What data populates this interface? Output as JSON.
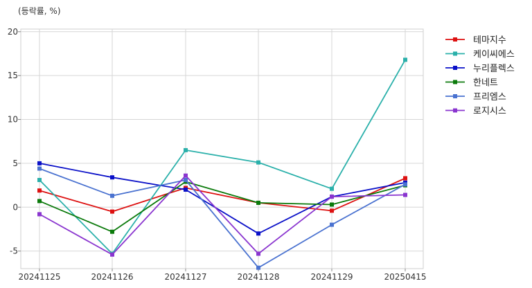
{
  "chart_data": {
    "type": "line",
    "unit_label": "(등락률, %)",
    "categories": [
      "20241125",
      "20241126",
      "20241127",
      "20241128",
      "20241129",
      "20250415"
    ],
    "ylim": [
      -7,
      20.3
    ],
    "yticks": [
      -5,
      0,
      5,
      10,
      15,
      20
    ],
    "grid": true,
    "legend_position": "right-outside",
    "series": [
      {
        "name": "테마지수",
        "color": "#dd1111",
        "values": [
          1.9,
          -0.5,
          2.2,
          0.5,
          -0.4,
          3.3
        ]
      },
      {
        "name": "케이씨에스",
        "color": "#2ab0aa",
        "values": [
          3.1,
          -5.3,
          6.5,
          5.1,
          2.1,
          16.8
        ]
      },
      {
        "name": "누리플렉스",
        "color": "#0a10c8",
        "values": [
          5.0,
          3.4,
          2.0,
          -3.0,
          1.2,
          2.8
        ]
      },
      {
        "name": "한네트",
        "color": "#0b7a0b",
        "values": [
          0.7,
          -2.8,
          2.9,
          0.5,
          0.3,
          2.5
        ]
      },
      {
        "name": "프리엠스",
        "color": "#4a72d0",
        "values": [
          4.4,
          1.3,
          3.1,
          -6.9,
          -2.0,
          2.6
        ]
      },
      {
        "name": "로지시스",
        "color": "#8a35cf",
        "values": [
          -0.8,
          -5.4,
          3.6,
          -5.3,
          1.2,
          1.4
        ]
      }
    ]
  }
}
